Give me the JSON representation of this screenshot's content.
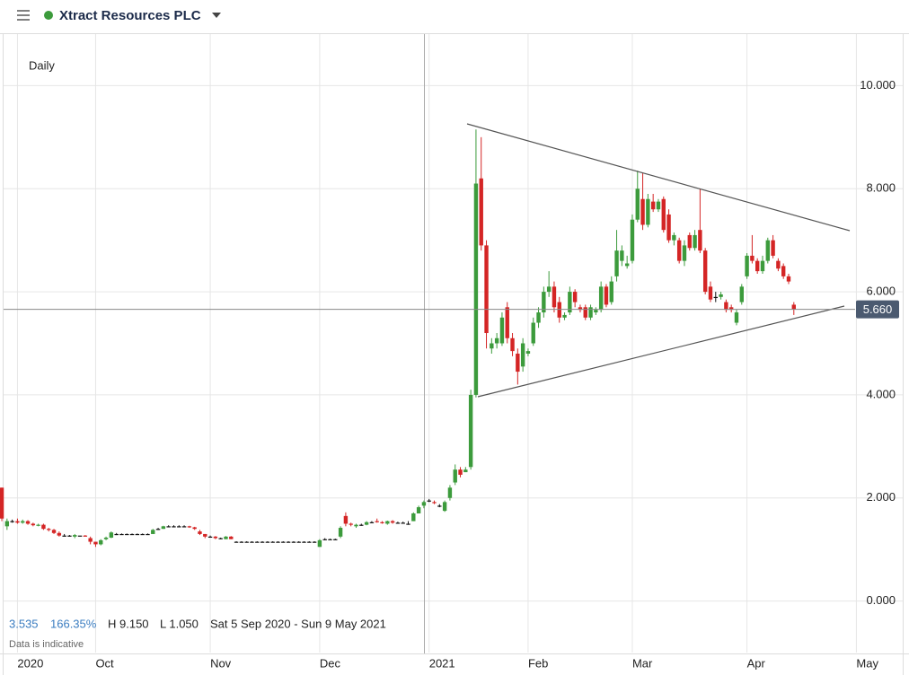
{
  "header": {
    "title": "Xtract Resources PLC"
  },
  "chart_data": {
    "type": "candlestick",
    "interval": "Daily",
    "up_color": "#3c9b3c",
    "down_color": "#d42525",
    "flat_color": "#111111",
    "grid": true,
    "stats": {
      "change": "3.535",
      "change_pct": "166.35%",
      "high": "H 9.150",
      "low": "L 1.050",
      "range": "Sat 5 Sep 2020 - Sun 9 May 2021",
      "note": "Data is indicative"
    },
    "last_price": {
      "value": 5.66,
      "label": "5.660"
    },
    "xlim": [
      -0.35,
      174.1
    ],
    "ylim": [
      -1,
      11
    ],
    "yticks": [
      {
        "value": 0,
        "label": "0.000"
      },
      {
        "value": 2,
        "label": "2.000"
      },
      {
        "value": 4,
        "label": "4.000"
      },
      {
        "value": 6,
        "label": "6.000"
      },
      {
        "value": 8,
        "label": "8.000"
      },
      {
        "value": 10,
        "label": "10.000"
      }
    ],
    "xticks": [
      {
        "value": 3,
        "label": "2020"
      },
      {
        "value": 18,
        "label": "Oct"
      },
      {
        "value": 40,
        "label": "Nov"
      },
      {
        "value": 61,
        "label": "Dec"
      },
      {
        "value": 82,
        "label": "2021"
      },
      {
        "value": 101,
        "label": "Feb"
      },
      {
        "value": 121,
        "label": "Mar"
      },
      {
        "value": 143,
        "label": "Apr"
      },
      {
        "value": 164,
        "label": "May"
      }
    ],
    "categories": [
      null,
      null,
      null,
      null,
      null,
      null,
      null,
      null,
      null,
      null,
      null,
      null,
      null,
      null,
      null,
      null,
      null,
      null,
      null,
      null,
      null,
      null,
      null,
      null,
      null,
      null,
      null,
      null,
      null,
      null,
      null,
      null,
      null,
      null,
      null,
      null,
      null,
      null,
      null,
      null,
      null,
      null,
      null,
      null,
      null,
      null,
      null,
      null,
      null,
      null,
      null,
      null,
      null,
      null,
      null,
      null,
      null,
      null,
      null,
      null,
      null,
      null,
      null,
      null,
      null,
      null,
      null,
      null,
      null,
      null,
      null,
      null,
      null,
      null,
      null,
      null,
      null,
      null,
      null,
      null,
      null,
      null,
      null,
      null,
      null,
      null,
      null,
      null,
      null,
      null,
      null,
      null,
      null,
      null,
      null,
      null,
      null,
      null,
      null,
      null,
      null,
      null,
      null,
      null,
      null,
      null,
      null,
      null,
      null,
      null,
      null,
      null,
      null,
      null,
      null,
      null,
      null,
      null,
      null,
      null,
      null,
      null,
      null,
      null,
      null,
      null,
      null,
      null,
      null,
      null,
      null,
      null,
      null,
      null,
      null,
      null,
      null,
      null,
      null,
      null,
      null,
      null,
      null,
      null,
      null,
      null,
      null,
      null,
      null,
      null,
      null,
      null,
      null
    ],
    "candles": [
      [
        2.2,
        2.2,
        1.55,
        1.6
      ],
      [
        1.45,
        1.6,
        1.38,
        1.55
      ],
      [
        1.55,
        1.58,
        1.52,
        1.55
      ],
      [
        1.55,
        1.6,
        1.5,
        1.52
      ],
      [
        1.52,
        1.58,
        1.5,
        1.55
      ],
      [
        1.55,
        1.57,
        1.48,
        1.5
      ],
      [
        1.5,
        1.52,
        1.45,
        1.47
      ],
      [
        1.47,
        1.5,
        1.45,
        1.48
      ],
      [
        1.48,
        1.5,
        1.38,
        1.4
      ],
      [
        1.4,
        1.42,
        1.35,
        1.38
      ],
      [
        1.38,
        1.4,
        1.3,
        1.32
      ],
      [
        1.32,
        1.35,
        1.25,
        1.27
      ],
      [
        1.27,
        1.3,
        1.25,
        1.27
      ],
      [
        1.27,
        1.28,
        1.25,
        1.27
      ],
      [
        1.25,
        1.3,
        1.22,
        1.28
      ],
      [
        1.27,
        1.27,
        1.27,
        1.27
      ],
      [
        1.27,
        1.28,
        1.25,
        1.25
      ],
      [
        1.22,
        1.25,
        1.1,
        1.15
      ],
      [
        1.15,
        1.15,
        1.05,
        1.1
      ],
      [
        1.1,
        1.2,
        1.08,
        1.18
      ],
      [
        1.2,
        1.25,
        1.18,
        1.23
      ],
      [
        1.23,
        1.35,
        1.22,
        1.33
      ],
      [
        1.3,
        1.32,
        1.28,
        1.3
      ],
      [
        1.3,
        1.31,
        1.29,
        1.3
      ],
      [
        1.3,
        1.31,
        1.29,
        1.3
      ],
      [
        1.3,
        1.31,
        1.29,
        1.3
      ],
      [
        1.3,
        1.31,
        1.29,
        1.3
      ],
      [
        1.3,
        1.31,
        1.29,
        1.3
      ],
      [
        1.3,
        1.31,
        1.29,
        1.3
      ],
      [
        1.3,
        1.4,
        1.3,
        1.38
      ],
      [
        1.4,
        1.42,
        1.38,
        1.4
      ],
      [
        1.4,
        1.46,
        1.4,
        1.45
      ],
      [
        1.45,
        1.47,
        1.44,
        1.45
      ],
      [
        1.45,
        1.47,
        1.44,
        1.45
      ],
      [
        1.45,
        1.47,
        1.44,
        1.45
      ],
      [
        1.45,
        1.47,
        1.44,
        1.45
      ],
      [
        1.45,
        1.46,
        1.42,
        1.43
      ],
      [
        1.43,
        1.44,
        1.38,
        1.4
      ],
      [
        1.35,
        1.38,
        1.28,
        1.3
      ],
      [
        1.3,
        1.3,
        1.22,
        1.25
      ],
      [
        1.25,
        1.27,
        1.23,
        1.25
      ],
      [
        1.25,
        1.26,
        1.2,
        1.22
      ],
      [
        1.22,
        1.23,
        1.2,
        1.22
      ],
      [
        1.2,
        1.26,
        1.2,
        1.25
      ],
      [
        1.25,
        1.26,
        1.2,
        1.2
      ],
      [
        1.15,
        1.16,
        1.14,
        1.15
      ],
      [
        1.15,
        1.16,
        1.14,
        1.15
      ],
      [
        1.15,
        1.16,
        1.14,
        1.15
      ],
      [
        1.15,
        1.16,
        1.14,
        1.15
      ],
      [
        1.15,
        1.16,
        1.14,
        1.15
      ],
      [
        1.15,
        1.16,
        1.14,
        1.15
      ],
      [
        1.15,
        1.16,
        1.14,
        1.15
      ],
      [
        1.15,
        1.16,
        1.14,
        1.15
      ],
      [
        1.15,
        1.16,
        1.14,
        1.15
      ],
      [
        1.15,
        1.16,
        1.14,
        1.15
      ],
      [
        1.15,
        1.16,
        1.14,
        1.15
      ],
      [
        1.15,
        1.16,
        1.14,
        1.15
      ],
      [
        1.15,
        1.16,
        1.14,
        1.15
      ],
      [
        1.15,
        1.16,
        1.14,
        1.15
      ],
      [
        1.15,
        1.16,
        1.14,
        1.15
      ],
      [
        1.15,
        1.16,
        1.14,
        1.15
      ],
      [
        1.05,
        1.2,
        1.05,
        1.18
      ],
      [
        1.2,
        1.22,
        1.18,
        1.2
      ],
      [
        1.2,
        1.21,
        1.19,
        1.2
      ],
      [
        1.2,
        1.21,
        1.19,
        1.2
      ],
      [
        1.25,
        1.45,
        1.22,
        1.42
      ],
      [
        1.65,
        1.72,
        1.45,
        1.5
      ],
      [
        1.5,
        1.52,
        1.45,
        1.48
      ],
      [
        1.45,
        1.5,
        1.42,
        1.48
      ],
      [
        1.48,
        1.5,
        1.46,
        1.48
      ],
      [
        1.48,
        1.55,
        1.47,
        1.53
      ],
      [
        1.53,
        1.55,
        1.51,
        1.53
      ],
      [
        1.55,
        1.6,
        1.52,
        1.53
      ],
      [
        1.53,
        1.55,
        1.5,
        1.52
      ],
      [
        1.5,
        1.56,
        1.48,
        1.55
      ],
      [
        1.55,
        1.57,
        1.5,
        1.52
      ],
      [
        1.52,
        1.54,
        1.5,
        1.52
      ],
      [
        1.52,
        1.54,
        1.5,
        1.52
      ],
      [
        1.5,
        1.55,
        1.48,
        1.5
      ],
      [
        1.55,
        1.72,
        1.55,
        1.7
      ],
      [
        1.7,
        1.85,
        1.7,
        1.82
      ],
      [
        1.85,
        1.95,
        1.8,
        1.92
      ],
      [
        1.95,
        1.98,
        1.92,
        1.95
      ],
      [
        1.92,
        1.95,
        1.88,
        1.9
      ],
      [
        1.85,
        1.88,
        1.82,
        1.85
      ],
      [
        1.75,
        1.95,
        1.73,
        1.92
      ],
      [
        2.0,
        2.25,
        1.95,
        2.2
      ],
      [
        2.3,
        2.65,
        2.25,
        2.55
      ],
      [
        2.55,
        2.6,
        2.4,
        2.45
      ],
      [
        2.5,
        2.6,
        2.5,
        2.55
      ],
      [
        2.6,
        4.1,
        2.55,
        4.0
      ],
      [
        4.0,
        9.15,
        3.95,
        8.1
      ],
      [
        8.2,
        9.0,
        6.8,
        6.9
      ],
      [
        6.9,
        7.0,
        4.9,
        5.2
      ],
      [
        4.9,
        5.1,
        4.8,
        5.0
      ],
      [
        5.0,
        5.2,
        4.9,
        5.1
      ],
      [
        5.0,
        5.6,
        4.95,
        5.5
      ],
      [
        5.7,
        5.8,
        5.0,
        5.1
      ],
      [
        5.1,
        5.2,
        4.75,
        4.85
      ],
      [
        4.8,
        4.9,
        4.2,
        4.45
      ],
      [
        4.55,
        5.1,
        4.45,
        5.0
      ],
      [
        4.8,
        4.9,
        4.75,
        4.85
      ],
      [
        5.0,
        5.5,
        4.95,
        5.4
      ],
      [
        5.4,
        5.7,
        5.3,
        5.6
      ],
      [
        5.6,
        6.1,
        5.5,
        6.0
      ],
      [
        6.0,
        6.4,
        5.9,
        6.1
      ],
      [
        6.1,
        6.2,
        5.6,
        5.7
      ],
      [
        5.8,
        5.9,
        5.4,
        5.5
      ],
      [
        5.5,
        5.6,
        5.45,
        5.55
      ],
      [
        5.6,
        6.1,
        5.55,
        6.0
      ],
      [
        6.0,
        6.05,
        5.7,
        5.8
      ],
      [
        5.7,
        5.75,
        5.6,
        5.65
      ],
      [
        5.7,
        5.75,
        5.45,
        5.5
      ],
      [
        5.5,
        5.75,
        5.45,
        5.7
      ],
      [
        5.6,
        5.7,
        5.55,
        5.65
      ],
      [
        5.65,
        6.2,
        5.6,
        6.1
      ],
      [
        6.1,
        6.15,
        5.7,
        5.75
      ],
      [
        5.8,
        6.3,
        5.75,
        6.2
      ],
      [
        6.3,
        7.2,
        6.2,
        6.8
      ],
      [
        6.6,
        6.9,
        6.5,
        6.8
      ],
      [
        6.5,
        6.7,
        6.45,
        6.55
      ],
      [
        6.6,
        7.5,
        6.55,
        7.4
      ],
      [
        7.4,
        8.35,
        7.35,
        8.0
      ],
      [
        7.8,
        8.3,
        7.2,
        7.3
      ],
      [
        7.3,
        7.9,
        7.25,
        7.8
      ],
      [
        7.75,
        7.9,
        7.55,
        7.6
      ],
      [
        7.6,
        7.8,
        7.55,
        7.75
      ],
      [
        7.8,
        7.85,
        7.15,
        7.2
      ],
      [
        7.5,
        7.6,
        6.95,
        7.0
      ],
      [
        7.0,
        7.15,
        6.9,
        7.1
      ],
      [
        7.0,
        7.05,
        6.55,
        6.6
      ],
      [
        6.6,
        7.0,
        6.5,
        6.9
      ],
      [
        7.1,
        7.15,
        6.8,
        6.85
      ],
      [
        6.85,
        7.2,
        6.8,
        7.1
      ],
      [
        7.2,
        8.0,
        6.75,
        6.8
      ],
      [
        6.8,
        6.85,
        5.95,
        6.0
      ],
      [
        6.1,
        6.2,
        5.8,
        5.85
      ],
      [
        5.9,
        6.0,
        5.8,
        5.9
      ],
      [
        5.9,
        6.0,
        5.85,
        5.95
      ],
      [
        5.8,
        5.85,
        5.6,
        5.65
      ],
      [
        5.7,
        5.75,
        5.6,
        5.65
      ],
      [
        5.4,
        5.65,
        5.35,
        5.6
      ],
      [
        5.8,
        6.15,
        5.75,
        6.1
      ],
      [
        6.3,
        6.75,
        6.25,
        6.7
      ],
      [
        6.7,
        7.1,
        6.55,
        6.6
      ],
      [
        6.6,
        6.65,
        6.35,
        6.4
      ],
      [
        6.4,
        6.7,
        6.35,
        6.6
      ],
      [
        6.6,
        7.05,
        6.55,
        7.0
      ],
      [
        7.0,
        7.1,
        6.65,
        6.7
      ],
      [
        6.6,
        6.65,
        6.4,
        6.45
      ],
      [
        6.5,
        6.55,
        6.25,
        6.3
      ],
      [
        6.3,
        6.35,
        6.15,
        6.2
      ],
      [
        5.75,
        5.8,
        5.55,
        5.66
      ]
    ]
  }
}
